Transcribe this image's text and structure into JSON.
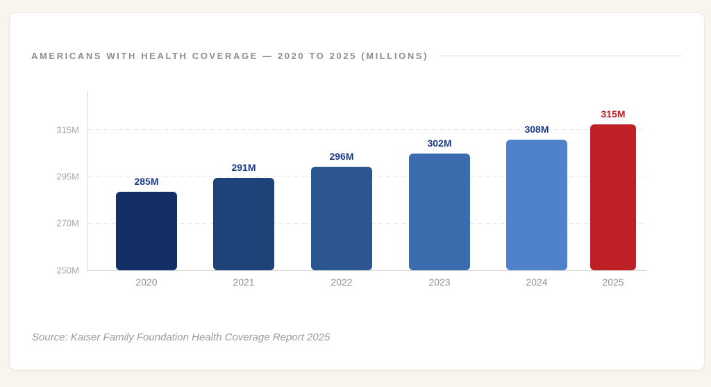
{
  "page": {
    "background_color": "#f8f5ef"
  },
  "card": {
    "title": "AMERICANS WITH HEALTH COVERAGE — 2020 TO 2025 (MILLIONS)",
    "source": "Source: Kaiser Family Foundation Health Coverage Report 2025"
  },
  "chart_data": {
    "type": "bar",
    "title": "Americans with Health Coverage — 2020 to 2025 (Millions)",
    "categories": [
      "2020",
      "2021",
      "2022",
      "2023",
      "2024",
      "2025"
    ],
    "values": [
      285,
      291,
      296,
      302,
      308,
      315
    ],
    "value_labels": [
      "285M",
      "291M",
      "296M",
      "302M",
      "308M",
      "315M"
    ],
    "bar_colors": [
      "#142f66",
      "#1e4379",
      "#2b568f",
      "#3a6cae",
      "#5082cc",
      "#bf2026"
    ],
    "value_label_colors": [
      "#1a3a82",
      "#1a3a82",
      "#1a3a82",
      "#1a3a82",
      "#1a3a82",
      "#bf2026"
    ],
    "xlabel": "",
    "ylabel": "",
    "ylim": [
      250,
      330
    ],
    "yticks": [
      "315M",
      "295M",
      "270M",
      "250M"
    ],
    "ytick_values": [
      315,
      295,
      270,
      250
    ],
    "grid": "horizontal-dashed",
    "legend_position": "none",
    "highlight_series": "2025",
    "accent_color": "#bf2026",
    "axis_color": "#d7d7d7"
  }
}
